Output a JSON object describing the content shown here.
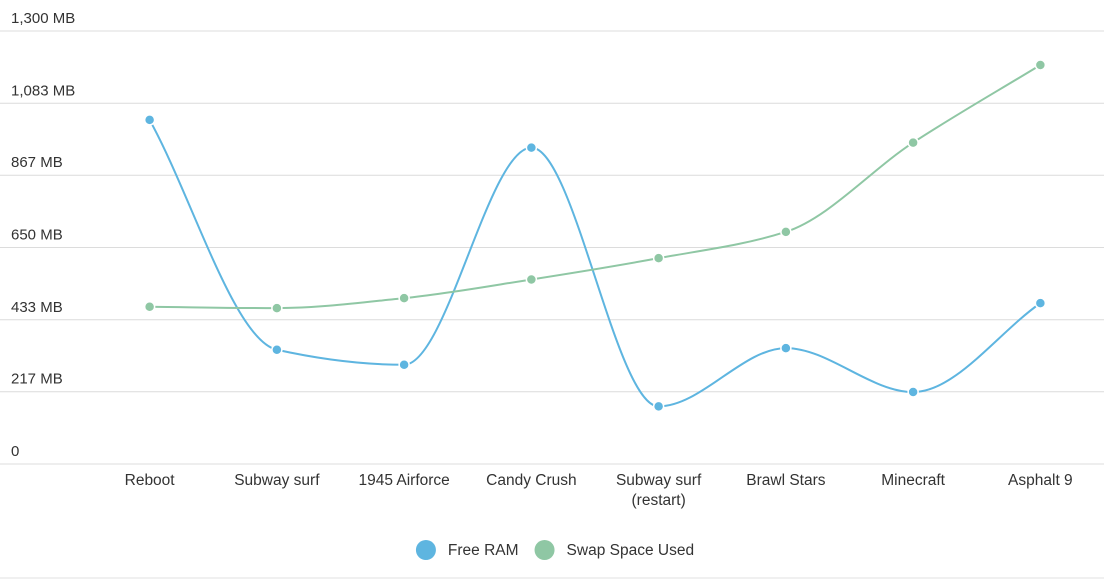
{
  "chart_data": {
    "type": "line",
    "title": "",
    "xlabel": "",
    "ylabel": "",
    "categories": [
      "Reboot",
      "Subway surf",
      "1945 Airforce",
      "Candy Crush",
      "Subway surf (restart)",
      "Brawl Stars",
      "Minecraft",
      "Asphalt 9"
    ],
    "category_lines": [
      [
        "Reboot"
      ],
      [
        "Subway surf"
      ],
      [
        "1945 Airforce"
      ],
      [
        "Candy Crush"
      ],
      [
        "Subway surf",
        "(restart)"
      ],
      [
        "Brawl Stars"
      ],
      [
        "Minecraft"
      ],
      [
        "Asphalt 9"
      ]
    ],
    "y_ticks": [
      0,
      217,
      433,
      650,
      867,
      1083,
      1300
    ],
    "y_tick_labels": [
      "0",
      "217 MB",
      "433 MB",
      "650 MB",
      "867 MB",
      "1,083 MB",
      "1,300 MB"
    ],
    "ylim": [
      0,
      1300
    ],
    "grid": true,
    "legend_position": "bottom-center",
    "series": [
      {
        "name": "Free RAM",
        "color": "#5eb5e0",
        "values": [
          1033,
          343,
          298,
          950,
          173,
          348,
          216,
          483
        ]
      },
      {
        "name": "Swap Space Used",
        "color": "#8fc7a4",
        "values": [
          472,
          468,
          498,
          554,
          618,
          697,
          965,
          1198
        ]
      }
    ]
  }
}
